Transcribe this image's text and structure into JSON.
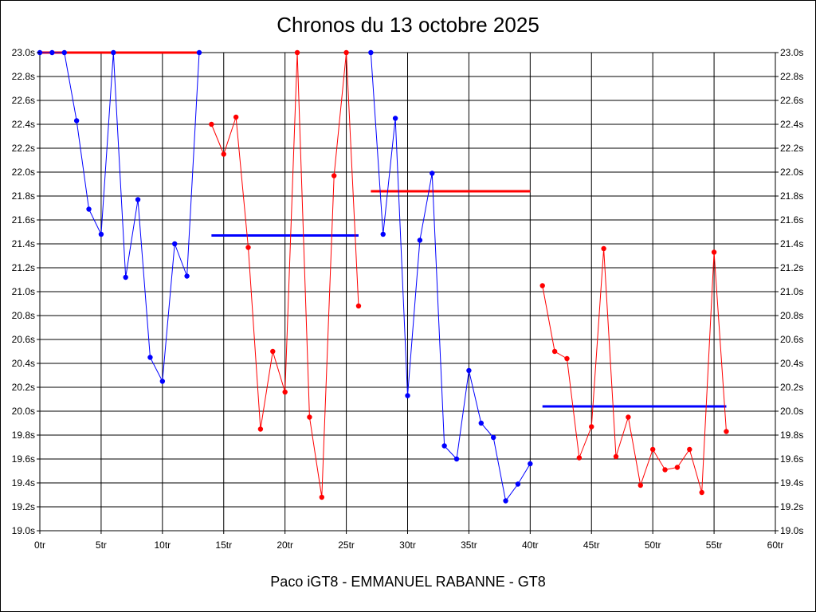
{
  "chart_data": {
    "type": "line",
    "title": "Chronos du 13 octobre 2025",
    "footer": "Paco iGT8 - EMMANUEL RABANNE - GT8",
    "x_tick_labels": [
      "0tr",
      "5tr",
      "10tr",
      "15tr",
      "20tr",
      "25tr",
      "30tr",
      "35tr",
      "40tr",
      "45tr",
      "50tr",
      "55tr",
      "60tr"
    ],
    "x_ticks": [
      0,
      5,
      10,
      15,
      20,
      25,
      30,
      35,
      40,
      45,
      50,
      55,
      60
    ],
    "y_tick_labels": [
      "19.0s",
      "19.2s",
      "19.4s",
      "19.6s",
      "19.8s",
      "20.0s",
      "20.2s",
      "20.4s",
      "20.6s",
      "20.8s",
      "21.0s",
      "21.2s",
      "21.4s",
      "21.6s",
      "21.8s",
      "22.0s",
      "22.2s",
      "22.4s",
      "22.6s",
      "22.8s",
      "23.0s"
    ],
    "y_ticks": [
      19.0,
      19.2,
      19.4,
      19.6,
      19.8,
      20.0,
      20.2,
      20.4,
      20.6,
      20.8,
      21.0,
      21.2,
      21.4,
      21.6,
      21.8,
      22.0,
      22.2,
      22.4,
      22.6,
      22.8,
      23.0
    ],
    "xlim": [
      0,
      60
    ],
    "ylim": [
      19.0,
      23.0
    ],
    "grid": true,
    "legend": "none",
    "series": [
      {
        "color": "#0000ff",
        "x": [
          0,
          1,
          2,
          3,
          4,
          5,
          6,
          7,
          8,
          9,
          10,
          11,
          12,
          13
        ],
        "y": [
          23.0,
          23.0,
          23.0,
          22.43,
          21.69,
          21.48,
          23.0,
          21.12,
          21.77,
          20.45,
          20.25,
          21.4,
          21.13,
          23.0
        ]
      },
      {
        "color": "#ff0000",
        "x": [
          14,
          15,
          16,
          17,
          18,
          19,
          20,
          21,
          22,
          23,
          24,
          25,
          26
        ],
        "y": [
          22.4,
          22.15,
          22.46,
          21.37,
          19.85,
          20.5,
          20.16,
          23.0,
          19.95,
          19.28,
          21.97,
          23.0,
          20.88
        ]
      },
      {
        "color": "#0000ff",
        "x": [
          27,
          28,
          29,
          30,
          31,
          32,
          33,
          34,
          35,
          36,
          37,
          38,
          39,
          40
        ],
        "y": [
          23.0,
          21.48,
          22.45,
          20.13,
          21.43,
          21.99,
          19.71,
          19.6,
          20.34,
          19.9,
          19.78,
          19.25,
          19.39,
          19.56
        ]
      },
      {
        "color": "#ff0000",
        "x": [
          41,
          42,
          43,
          44,
          45,
          46,
          47,
          48,
          49,
          50,
          51,
          52,
          53,
          54,
          55,
          56
        ],
        "y": [
          21.05,
          20.5,
          20.44,
          19.61,
          19.87,
          21.36,
          19.62,
          19.95,
          19.38,
          19.68,
          19.51,
          19.53,
          19.68,
          19.32,
          21.33,
          19.83
        ]
      }
    ],
    "average_lines": [
      {
        "color": "#ff0000",
        "x_start": 0,
        "x_end": 13,
        "y": 23.0
      },
      {
        "color": "#0000ff",
        "x_start": 14,
        "x_end": 26,
        "y": 21.47
      },
      {
        "color": "#ff0000",
        "x_start": 27,
        "x_end": 40,
        "y": 21.84
      },
      {
        "color": "#0000ff",
        "x_start": 41,
        "x_end": 56,
        "y": 20.04
      }
    ]
  }
}
